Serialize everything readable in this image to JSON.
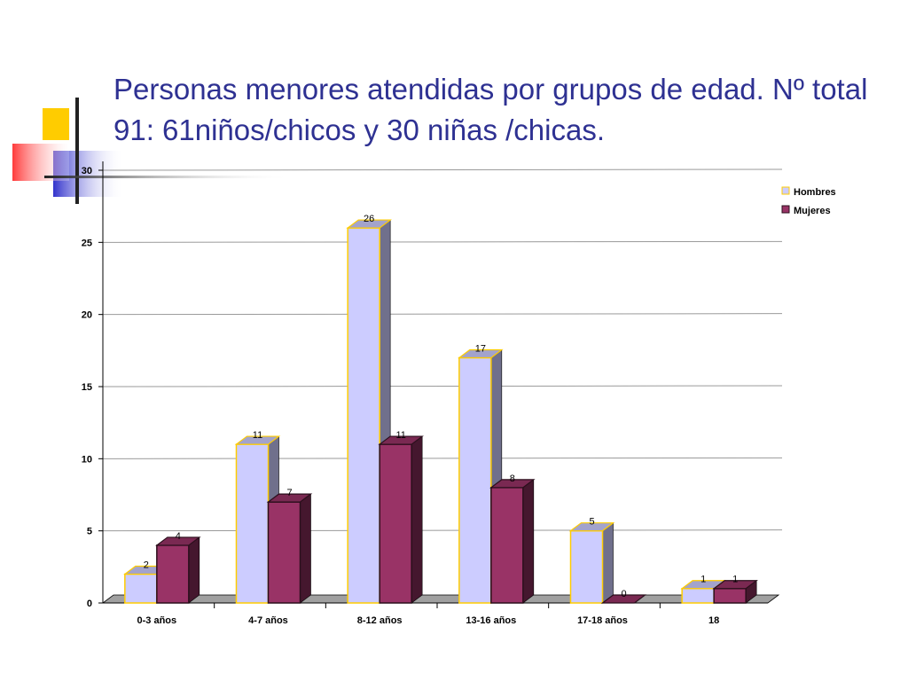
{
  "slide": {
    "title": "Personas menores atendidas por grupos de edad. Nº total 91: 61niños/chicos y 30 niñas /chicas."
  },
  "chart_data": {
    "type": "bar",
    "title": "",
    "xlabel": "",
    "ylabel": "",
    "categories": [
      "0-3 años",
      "4-7 años",
      "8-12 años",
      "13-16 años",
      "17-18 años",
      "18"
    ],
    "series": [
      {
        "name": "Hombres",
        "values": [
          2,
          11,
          26,
          17,
          5,
          1
        ],
        "color": "#ccccff",
        "edge": "#ffcc00"
      },
      {
        "name": "Mujeres",
        "values": [
          4,
          7,
          11,
          8,
          0,
          1
        ],
        "color": "#993366",
        "edge": "#2b0f1c"
      }
    ],
    "ylim": [
      0,
      30
    ],
    "yticks": [
      0,
      5,
      10,
      15,
      20,
      25,
      30
    ],
    "grid": true,
    "legend": "top-right",
    "data_labels": true,
    "style": "3d-clustered-column"
  },
  "colors": {
    "title": "#2e3192",
    "deco_yellow": "#ffcc00",
    "deco_blue": "#3333cc",
    "deco_red": "#ff3333"
  }
}
